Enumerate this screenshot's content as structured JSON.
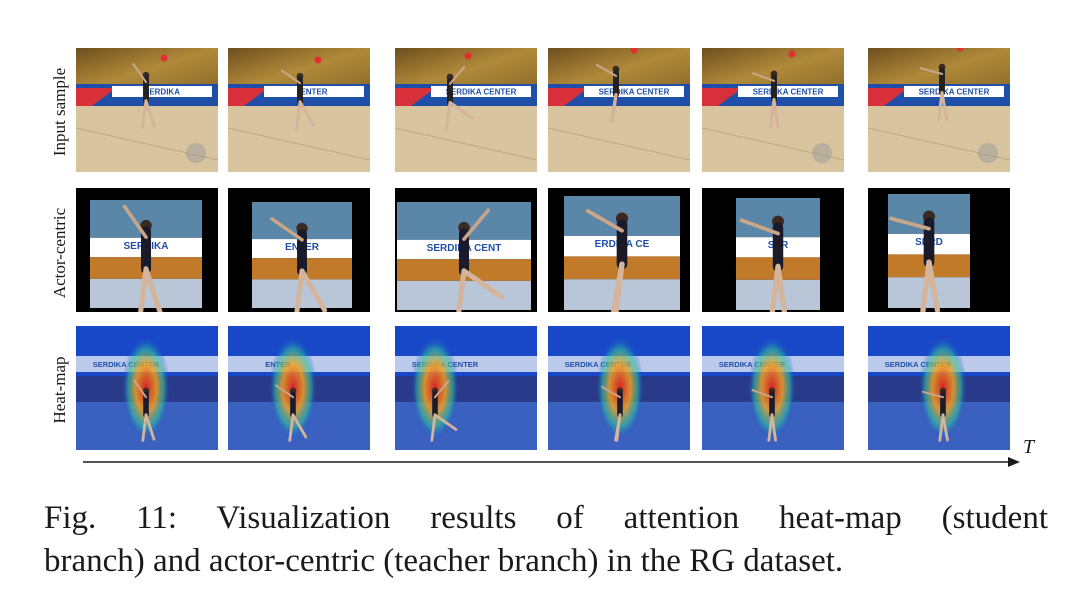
{
  "rows": [
    {
      "label": "Input sample"
    },
    {
      "label": "Actor-centric"
    },
    {
      "label": "Heat-map"
    }
  ],
  "banner_text": {
    "primary": "SERDIKA CENTER",
    "short": "SERDIKA",
    "fragment_1": "SERDIKA",
    "fragment_2": "ENTER",
    "fragment_3": "SER",
    "fragment_4": "SERD",
    "fragment_5": "SERDIKA CENT",
    "fragment_6": "ERDIKA CE",
    "fragment_7": "SERDIKA CENTER",
    "fragment_8": "SERDIKA CENTER"
  },
  "time_axis_label": "T",
  "caption": {
    "line1": "Fig. 11: Visualization results of attention heat-map (student",
    "line2": "branch) and actor-centric (teacher branch) in the RG dataset."
  },
  "colors": {
    "arena_gold": "#b08a3a",
    "arena_floor": "#d9c4a0",
    "banner_blue": "#1f4fa8",
    "banner_red": "#d8303a",
    "heat_hot": "#e02020",
    "heat_cold": "#1848c8"
  }
}
